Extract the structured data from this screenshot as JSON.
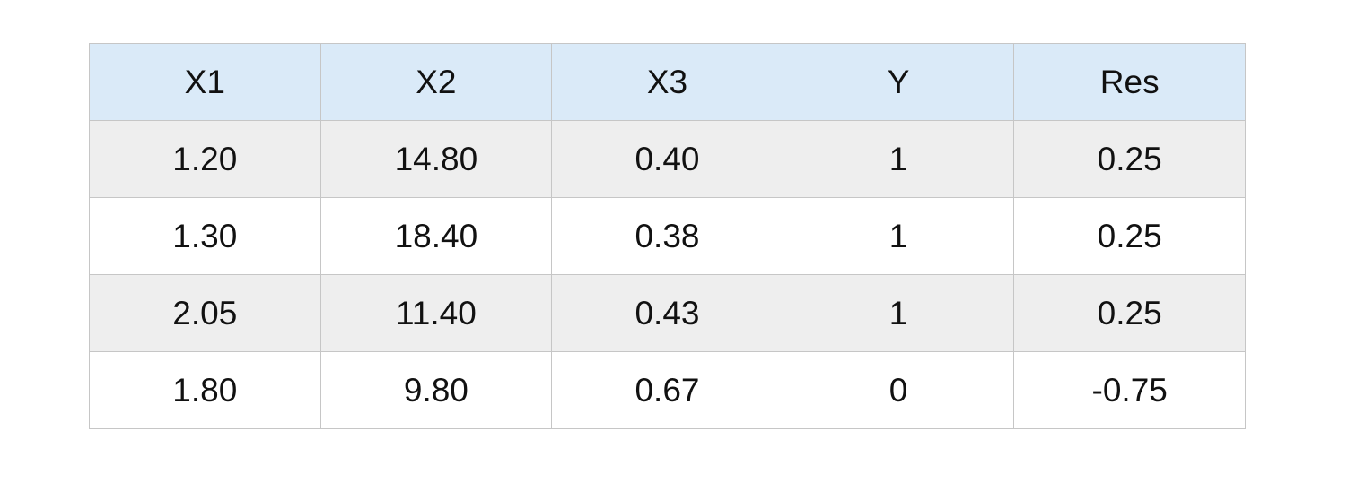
{
  "chart_data": {
    "type": "table",
    "columns": [
      "X1",
      "X2",
      "X3",
      "Y",
      "Res"
    ],
    "rows": [
      [
        "1.20",
        "14.80",
        "0.40",
        "1",
        "0.25"
      ],
      [
        "1.30",
        "18.40",
        "0.38",
        "1",
        "0.25"
      ],
      [
        "2.05",
        "11.40",
        "0.43",
        "1",
        "0.25"
      ],
      [
        "1.80",
        "9.80",
        "0.67",
        "0",
        "-0.75"
      ]
    ]
  },
  "colors": {
    "header_background": "#daeaf8",
    "striped_row_background": "#eeeeee",
    "plain_row_background": "#ffffff",
    "border": "#c6c6c6",
    "text": "#111111"
  }
}
